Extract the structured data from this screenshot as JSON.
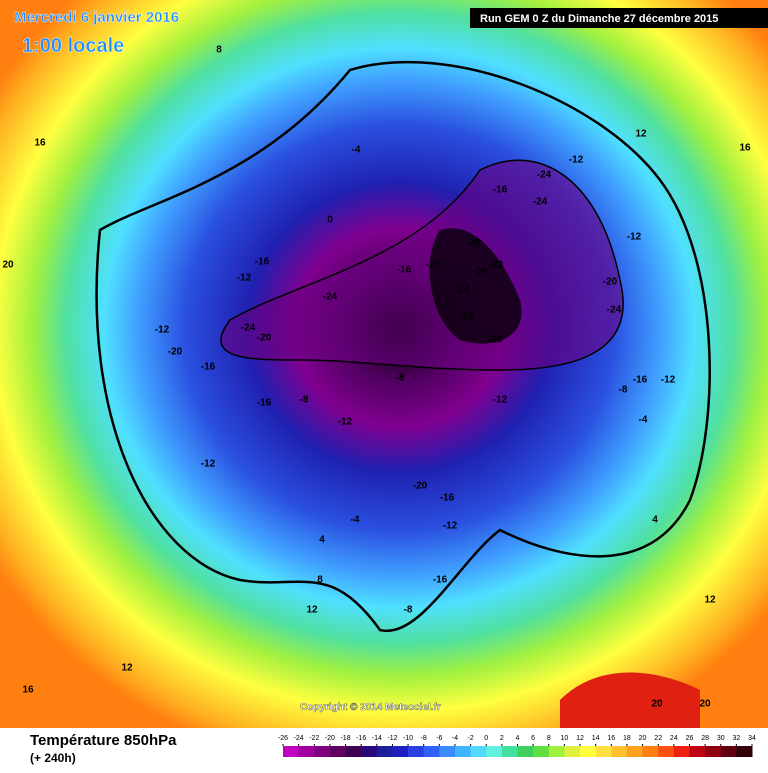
{
  "header": {
    "date": "Mercredi 6 janvier 2016",
    "time": "1:00 locale",
    "run": "Run GEM 0 Z du Dimanche 27 décembre 2015"
  },
  "footer": {
    "title": "Température 850hPa",
    "lead": "(+ 240h)",
    "copyright": "Copyright © 2014 Meteociel.fr"
  },
  "legend": {
    "ticks": [
      -26,
      -24,
      -22,
      -20,
      -18,
      -16,
      -14,
      -12,
      -10,
      -8,
      -6,
      -4,
      -2,
      0,
      2,
      4,
      6,
      8,
      10,
      12,
      14,
      16,
      18,
      20,
      22,
      24,
      26,
      28,
      30,
      32,
      34
    ],
    "colors": [
      "#c000c0",
      "#a000a0",
      "#800080",
      "#600060",
      "#400050",
      "#2a0a7a",
      "#1e1e9a",
      "#2020c0",
      "#2a40e0",
      "#3060ff",
      "#3a8cff",
      "#40b4ff",
      "#50d8ff",
      "#60f0e0",
      "#40e0a0",
      "#40d060",
      "#60e040",
      "#a0f040",
      "#e0f040",
      "#ffff40",
      "#ffe040",
      "#ffc030",
      "#ffa020",
      "#ff8010",
      "#ff5010",
      "#f02010",
      "#c00010",
      "#900010",
      "#600010",
      "#300008"
    ]
  },
  "map": {
    "labels": [
      -24,
      -24,
      -16,
      -28,
      -28,
      -23,
      -24,
      -28,
      -28,
      -20,
      -16,
      -24,
      -24,
      -20,
      -20,
      -16,
      -12,
      -12,
      -12,
      -16,
      -8,
      -16,
      -12,
      -20,
      -16,
      -12,
      -16,
      -8,
      -4,
      4,
      8,
      12,
      12,
      16,
      20,
      20,
      16,
      8,
      -12,
      -8,
      -4,
      -8,
      -16,
      -12,
      -20,
      -24,
      -12,
      -12,
      12,
      16,
      20,
      12,
      4,
      -4,
      0
    ]
  }
}
